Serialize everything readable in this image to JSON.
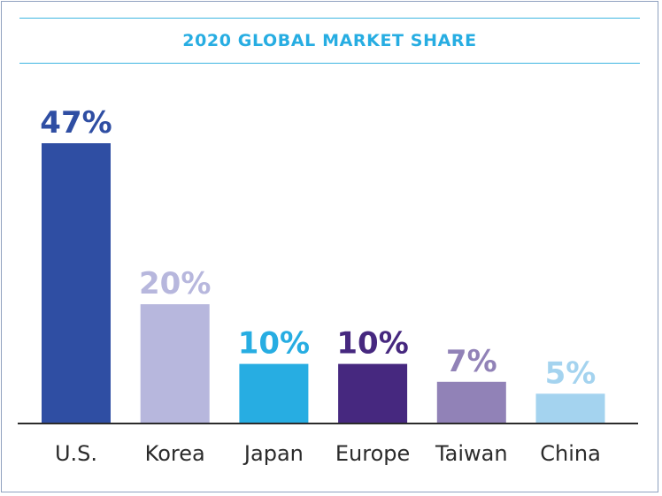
{
  "chart_data": {
    "type": "bar",
    "title": "2020 GLOBAL MARKET SHARE",
    "xlabel": "",
    "ylabel": "",
    "categories": [
      "U.S.",
      "Korea",
      "Japan",
      "Europe",
      "Taiwan",
      "China"
    ],
    "values": [
      47,
      20,
      10,
      10,
      7,
      5
    ],
    "data_labels": [
      "47%",
      "20%",
      "10%",
      "10%",
      "7%",
      "5%"
    ],
    "ylim": [
      0,
      47
    ],
    "grid": false,
    "legend": "none",
    "colors": [
      "#2f4ea3",
      "#b7b7dd",
      "#27ade2",
      "#46287f",
      "#9182b7",
      "#a4d3ef"
    ],
    "label_colors": [
      "#2f4ea3",
      "#b7b7dd",
      "#27ade2",
      "#46287f",
      "#9182b7",
      "#a4d3ef"
    ],
    "axis_color": "#2b2b2b"
  }
}
